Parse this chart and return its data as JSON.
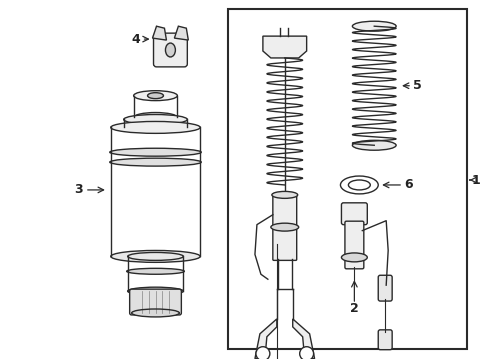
{
  "background_color": "#ffffff",
  "line_color": "#2a2a2a",
  "label_color": "#222222",
  "fig_w": 4.89,
  "fig_h": 3.6,
  "dpi": 100
}
